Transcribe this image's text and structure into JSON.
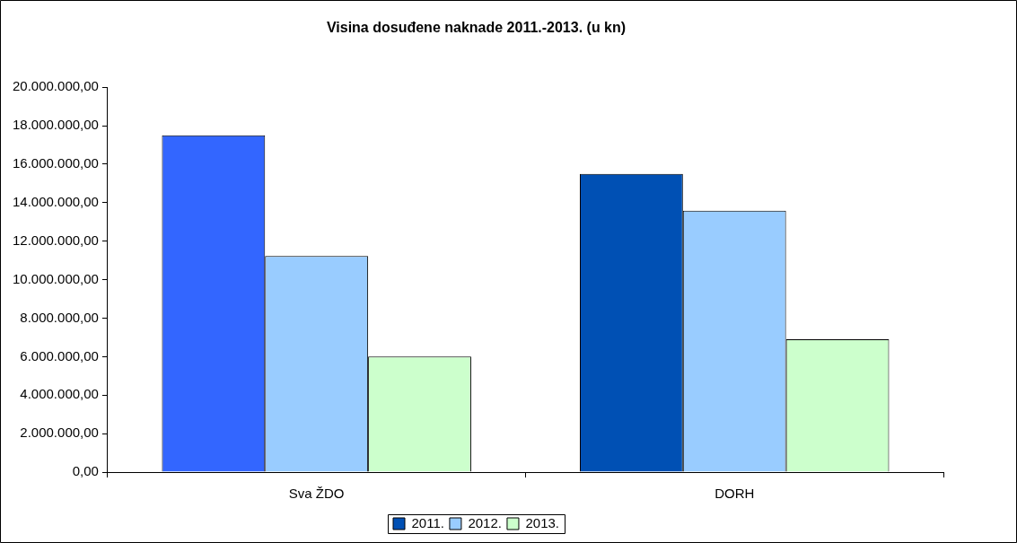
{
  "chart_data": {
    "type": "bar",
    "title": "Visina dosuđene naknade 2011.-2013. (u kn)",
    "categories": [
      "Sva ŽDO",
      "DORH"
    ],
    "series": [
      {
        "name": "2011.",
        "color": "#0050b4",
        "colors": [
          "#3366ff",
          "#0050b4"
        ],
        "values": [
          17500000,
          15500000
        ]
      },
      {
        "name": "2012.",
        "color": "#99ccff",
        "values": [
          11230000,
          13580000
        ]
      },
      {
        "name": "2013.",
        "color": "#ccffcc",
        "values": [
          6000000,
          6900000
        ]
      }
    ],
    "ylim": [
      0,
      20000000
    ],
    "yticks": [
      {
        "value": 0,
        "label": "0,00"
      },
      {
        "value": 2000000,
        "label": "2.000.000,00"
      },
      {
        "value": 4000000,
        "label": "4.000.000,00"
      },
      {
        "value": 6000000,
        "label": "6.000.000,00"
      },
      {
        "value": 8000000,
        "label": "8.000.000,00"
      },
      {
        "value": 10000000,
        "label": "10.000.000,00"
      },
      {
        "value": 12000000,
        "label": "12.000.000,00"
      },
      {
        "value": 14000000,
        "label": "14.000.000,00"
      },
      {
        "value": 16000000,
        "label": "16.000.000,00"
      },
      {
        "value": 18000000,
        "label": "18.000.000,00"
      },
      {
        "value": 20000000,
        "label": "20.000.000,00"
      }
    ],
    "grid": false,
    "legend": "bottom"
  }
}
